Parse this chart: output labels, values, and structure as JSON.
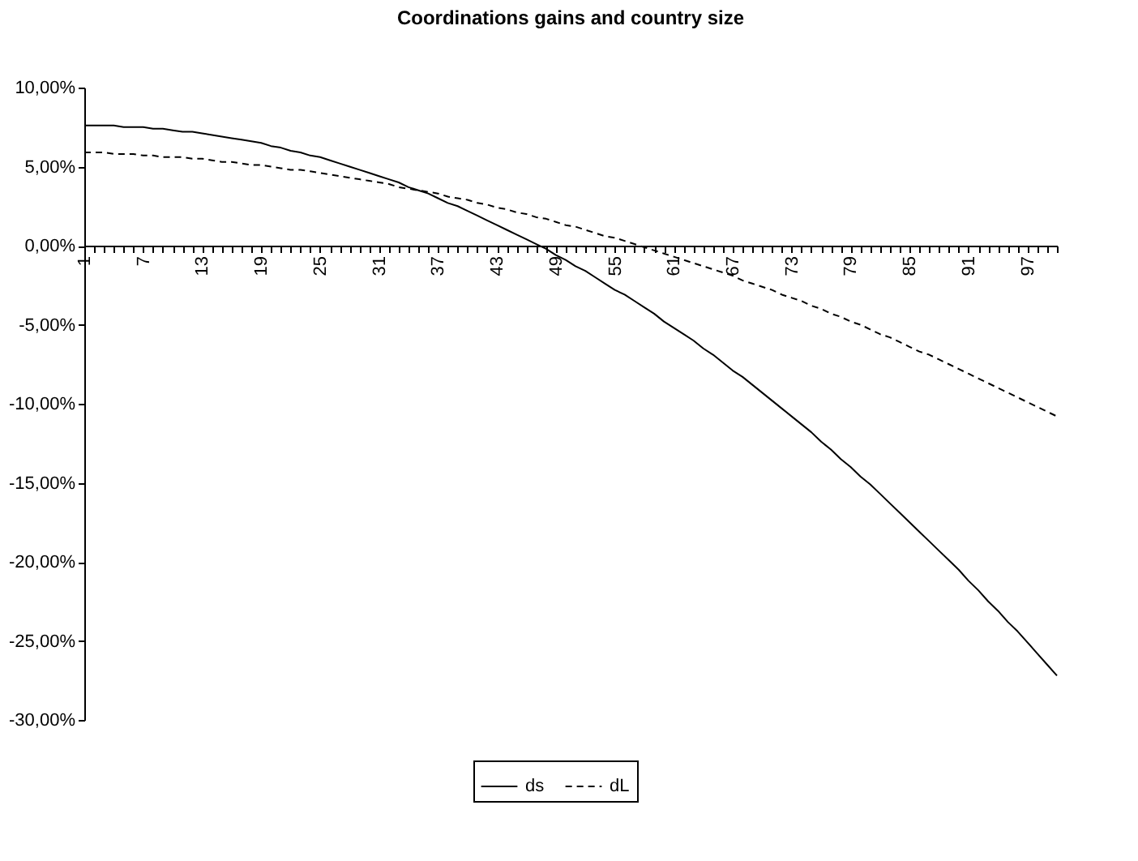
{
  "chart_data": {
    "type": "line",
    "title": "Coordinations gains and country size",
    "categories": [
      "1",
      null,
      null,
      null,
      null,
      null,
      "7",
      null,
      null,
      null,
      null,
      null,
      "13",
      null,
      null,
      null,
      null,
      null,
      "19",
      null,
      null,
      null,
      null,
      null,
      "25",
      null,
      null,
      null,
      null,
      null,
      "31",
      null,
      null,
      null,
      null,
      null,
      "37",
      null,
      null,
      null,
      null,
      null,
      "43",
      null,
      null,
      null,
      null,
      null,
      "49",
      null,
      null,
      null,
      null,
      null,
      "55",
      null,
      null,
      null,
      null,
      null,
      "61",
      null,
      null,
      null,
      null,
      null,
      "67",
      null,
      null,
      null,
      null,
      null,
      "73",
      null,
      null,
      null,
      null,
      null,
      "79",
      null,
      null,
      null,
      null,
      null,
      "85",
      null,
      null,
      null,
      null,
      null,
      "91",
      null,
      null,
      null,
      null,
      null,
      "97",
      null,
      null,
      null
    ],
    "series": [
      {
        "name": "ds",
        "color": "#000000",
        "line_style": "solid",
        "values": [
          7.6,
          7.6,
          7.6,
          7.6,
          7.5,
          7.5,
          7.5,
          7.4,
          7.4,
          7.3,
          7.2,
          7.2,
          7.1,
          7.0,
          6.9,
          6.8,
          6.7,
          6.6,
          6.5,
          6.3,
          6.2,
          6.0,
          5.9,
          5.7,
          5.6,
          5.4,
          5.2,
          5.0,
          4.8,
          4.6,
          4.4,
          4.2,
          4.0,
          3.7,
          3.5,
          3.3,
          3.0,
          2.7,
          2.5,
          2.2,
          1.9,
          1.6,
          1.3,
          1.0,
          0.7,
          0.4,
          0.1,
          -0.2,
          -0.6,
          -0.9,
          -1.3,
          -1.6,
          -2.0,
          -2.4,
          -2.8,
          -3.1,
          -3.5,
          -3.9,
          -4.3,
          -4.8,
          -5.2,
          -5.6,
          -6.0,
          -6.5,
          -6.9,
          -7.4,
          -7.9,
          -8.3,
          -8.8,
          -9.3,
          -9.8,
          -10.3,
          -10.8,
          -11.3,
          -11.8,
          -12.4,
          -12.9,
          -13.5,
          -14.0,
          -14.6,
          -15.1,
          -15.7,
          -16.3,
          -16.9,
          -17.5,
          -18.1,
          -18.7,
          -19.3,
          -19.9,
          -20.5,
          -21.2,
          -21.8,
          -22.5,
          -23.1,
          -23.8,
          -24.4,
          -25.1,
          -25.8,
          -26.5,
          -27.2
        ]
      },
      {
        "name": "dL",
        "color": "#000000",
        "line_style": "dashed",
        "values": [
          5.9,
          5.9,
          5.9,
          5.8,
          5.8,
          5.8,
          5.7,
          5.7,
          5.6,
          5.6,
          5.6,
          5.5,
          5.5,
          5.4,
          5.3,
          5.3,
          5.2,
          5.1,
          5.1,
          5.0,
          4.9,
          4.8,
          4.8,
          4.7,
          4.6,
          4.5,
          4.4,
          4.3,
          4.2,
          4.1,
          4.0,
          3.9,
          3.7,
          3.6,
          3.5,
          3.4,
          3.3,
          3.1,
          3.0,
          2.9,
          2.7,
          2.6,
          2.4,
          2.3,
          2.1,
          2.0,
          1.8,
          1.7,
          1.5,
          1.3,
          1.2,
          1.0,
          0.8,
          0.6,
          0.5,
          0.3,
          0.1,
          -0.1,
          -0.3,
          -0.5,
          -0.7,
          -0.9,
          -1.1,
          -1.3,
          -1.5,
          -1.7,
          -1.9,
          -2.2,
          -2.4,
          -2.6,
          -2.8,
          -3.1,
          -3.3,
          -3.5,
          -3.8,
          -4.0,
          -4.3,
          -4.5,
          -4.8,
          -5.0,
          -5.3,
          -5.6,
          -5.8,
          -6.1,
          -6.4,
          -6.7,
          -6.9,
          -7.2,
          -7.5,
          -7.8,
          -8.1,
          -8.4,
          -8.7,
          -9.0,
          -9.3,
          -9.6,
          -9.9,
          -10.2,
          -10.5,
          -10.8
        ]
      }
    ],
    "ylim": [
      -30,
      10
    ],
    "yticks": [
      {
        "value": -30,
        "label": "-30,00%"
      },
      {
        "value": -25,
        "label": "-25,00%"
      },
      {
        "value": -20,
        "label": "-20,00%"
      },
      {
        "value": -15,
        "label": "-15,00%"
      },
      {
        "value": -10,
        "label": "-10,00%"
      },
      {
        "value": -5,
        "label": "-5,00%"
      },
      {
        "value": 0,
        "label": "0,00%"
      },
      {
        "value": 5,
        "label": "5,00%"
      },
      {
        "value": 10,
        "label": "10,00%"
      }
    ],
    "grid": false,
    "legend": "bottom",
    "marker": "none"
  }
}
